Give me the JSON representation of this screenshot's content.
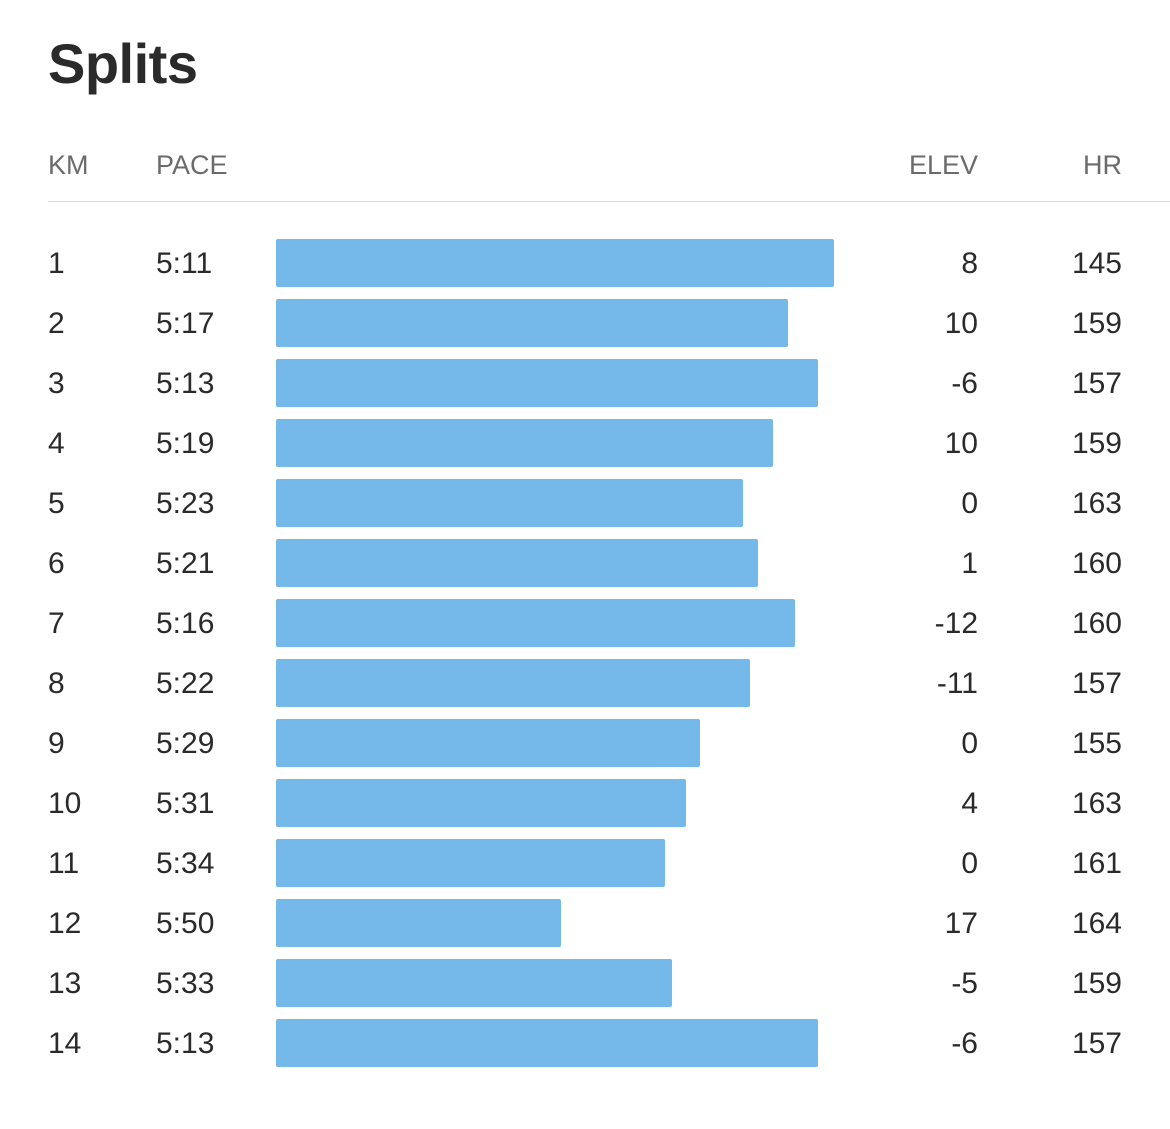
{
  "title": "Splits",
  "columns": {
    "km": "KM",
    "pace": "PACE",
    "elev": "ELEV",
    "hr": "HR"
  },
  "bar_color": "#74b9ea",
  "splits": [
    {
      "km": "1",
      "pace": "5:11",
      "elev": "8",
      "hr": "145"
    },
    {
      "km": "2",
      "pace": "5:17",
      "elev": "10",
      "hr": "159"
    },
    {
      "km": "3",
      "pace": "5:13",
      "elev": "-6",
      "hr": "157"
    },
    {
      "km": "4",
      "pace": "5:19",
      "elev": "10",
      "hr": "159"
    },
    {
      "km": "5",
      "pace": "5:23",
      "elev": "0",
      "hr": "163"
    },
    {
      "km": "6",
      "pace": "5:21",
      "elev": "1",
      "hr": "160"
    },
    {
      "km": "7",
      "pace": "5:16",
      "elev": "-12",
      "hr": "160"
    },
    {
      "km": "8",
      "pace": "5:22",
      "elev": "-11",
      "hr": "157"
    },
    {
      "km": "9",
      "pace": "5:29",
      "elev": "0",
      "hr": "155"
    },
    {
      "km": "10",
      "pace": "5:31",
      "elev": "4",
      "hr": "163"
    },
    {
      "km": "11",
      "pace": "5:34",
      "elev": "0",
      "hr": "161"
    },
    {
      "km": "12",
      "pace": "5:50",
      "elev": "17",
      "hr": "164"
    },
    {
      "km": "13",
      "pace": "5:33",
      "elev": "-5",
      "hr": "159"
    },
    {
      "km": "14",
      "pace": "5:13",
      "elev": "-6",
      "hr": "157"
    }
  ]
}
